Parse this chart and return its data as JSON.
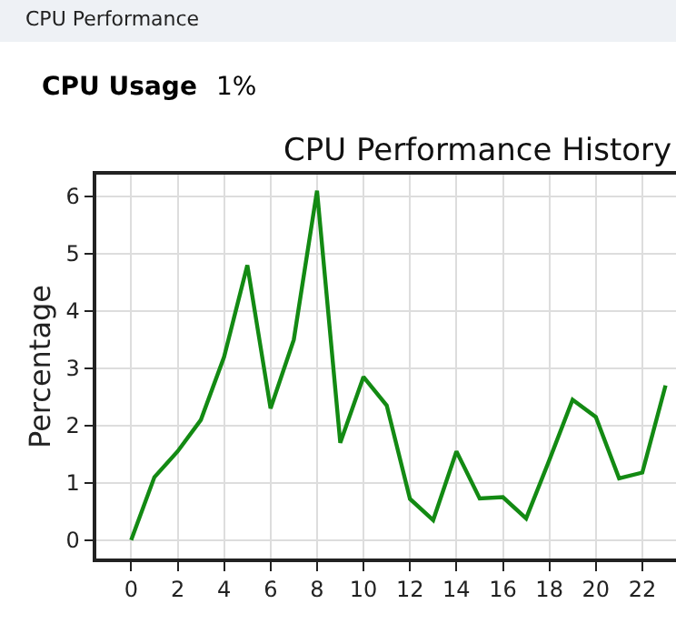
{
  "chart_data": {
    "type": "line",
    "title": "CPU Performance History",
    "ylabel": "Percentage",
    "annotations": [
      "CPU Performance",
      "CPU Usage",
      "1%"
    ],
    "x": [
      0,
      1,
      2,
      3,
      4,
      5,
      6,
      7,
      8,
      9,
      10,
      11,
      12,
      13,
      14,
      15,
      16,
      17,
      18,
      19,
      20,
      21,
      22,
      23
    ],
    "series": [
      {
        "color": "#138a13",
        "values": [
          0,
          1.1,
          1.55,
          2.1,
          3.2,
          4.8,
          2.3,
          3.5,
          6.1,
          1.7,
          2.85,
          2.35,
          0.72,
          0.35,
          1.55,
          0.73,
          0.75,
          0.38,
          1.4,
          2.45,
          2.15,
          1.08,
          1.18,
          2.7
        ]
      }
    ],
    "xlim": [
      -1.5,
      23.45
    ],
    "ylim": [
      -0.32,
      6.38
    ],
    "xticks": [
      0,
      2,
      4,
      6,
      8,
      10,
      12,
      14,
      16,
      18,
      20,
      22
    ],
    "yticks": [
      0,
      1,
      2,
      3,
      4,
      5,
      6
    ],
    "grid": true,
    "marker": "none",
    "line_style": "solid"
  }
}
